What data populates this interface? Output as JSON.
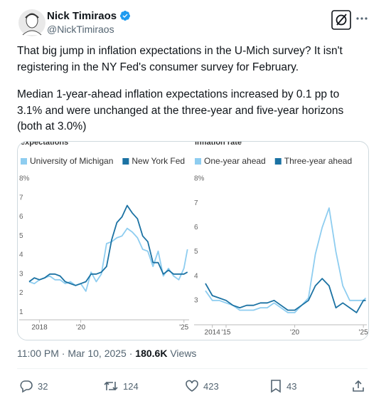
{
  "tweet": {
    "author": {
      "name": "Nick Timiraos",
      "handle": "@NickTimiraos"
    },
    "paragraphs": [
      "That big jump in inflation expectations in the U-Mich survey? It isn't registering in the NY Fed's consumer survey for February.",
      "Median 1-year-ahead inflation expectations increased by 0.1 pp to 3.1% and were unchanged at the three-year and five-year horizons (both at 3.0%)"
    ],
    "time": "11:00 PM",
    "separator": "·",
    "date": "Mar 10, 2025",
    "views": "180.6K",
    "views_label": "Views",
    "actions": {
      "replies": "32",
      "reposts": "124",
      "likes": "423",
      "bookmarks": "43"
    }
  },
  "chart_data": [
    {
      "type": "line",
      "title": "expectations",
      "x": [
        2017.5,
        2017.75,
        2018,
        2018.25,
        2018.5,
        2018.75,
        2019,
        2019.25,
        2019.5,
        2019.75,
        2020,
        2020.25,
        2020.5,
        2020.75,
        2021,
        2021.25,
        2021.5,
        2021.75,
        2022,
        2022.25,
        2022.5,
        2022.75,
        2023,
        2023.25,
        2023.5,
        2023.75,
        2024,
        2024.25,
        2024.5,
        2024.75,
        2025,
        2025.17
      ],
      "xlim": [
        2017.5,
        2025.25
      ],
      "xticks": [
        {
          "value": 2018,
          "label": "2018"
        },
        {
          "value": 2020,
          "label": "'20"
        },
        {
          "value": 2025,
          "label": "'25"
        }
      ],
      "ylim": [
        0.6,
        8
      ],
      "yticks": [
        1,
        2,
        3,
        4,
        5,
        6,
        7,
        {
          "value": 8,
          "label": "8%"
        }
      ],
      "series": [
        {
          "name": "University of Michigan",
          "color": "#8ecdf0",
          "values": [
            2.6,
            2.5,
            2.7,
            2.8,
            2.9,
            2.7,
            2.7,
            2.5,
            2.6,
            2.4,
            2.5,
            2.1,
            3.1,
            2.6,
            3.0,
            4.6,
            4.7,
            4.9,
            5.0,
            5.4,
            5.2,
            4.9,
            4.3,
            4.2,
            3.4,
            4.2,
            2.9,
            3.3,
            2.9,
            2.7,
            3.3,
            4.3
          ]
        },
        {
          "name": "New York Fed",
          "color": "#1b72a3",
          "values": [
            2.6,
            2.8,
            2.7,
            2.8,
            3.0,
            3.0,
            2.9,
            2.6,
            2.5,
            2.4,
            2.5,
            2.6,
            3.0,
            3.0,
            3.1,
            3.4,
            4.8,
            5.7,
            6.0,
            6.6,
            6.2,
            5.9,
            5.0,
            4.7,
            3.6,
            3.6,
            3.0,
            3.2,
            3.0,
            3.0,
            3.0,
            3.1
          ]
        }
      ]
    },
    {
      "type": "line",
      "title": "inflation rate",
      "x": [
        2013.5,
        2014,
        2014.5,
        2015,
        2015.5,
        2016,
        2016.5,
        2017,
        2017.5,
        2018,
        2018.5,
        2019,
        2019.5,
        2020,
        2020.5,
        2021,
        2021.5,
        2022,
        2022.5,
        2023,
        2023.5,
        2024,
        2024.5,
        2025,
        2025.17
      ],
      "xlim": [
        2013.5,
        2025.25
      ],
      "xticks": [
        {
          "value": 2014,
          "label": "2014"
        },
        {
          "value": 2015,
          "label": "'15"
        },
        {
          "value": 2020,
          "label": "'20"
        },
        {
          "value": 2025,
          "label": "'25"
        }
      ],
      "ylim": [
        2,
        8
      ],
      "yticks": [
        3,
        4,
        5,
        6,
        7,
        {
          "value": 8,
          "label": "8%"
        }
      ],
      "series": [
        {
          "name": "One-year ahead",
          "color": "#8ecdf0",
          "values": [
            3.4,
            3.0,
            3.0,
            2.9,
            2.8,
            2.6,
            2.6,
            2.6,
            2.7,
            2.7,
            2.9,
            2.7,
            2.5,
            2.5,
            2.8,
            3.1,
            4.9,
            6.0,
            6.8,
            5.0,
            3.6,
            3.0,
            3.0,
            3.0,
            3.1
          ]
        },
        {
          "name": "Three-year ahead",
          "color": "#1b72a3",
          "values": [
            3.7,
            3.2,
            3.1,
            3.0,
            2.8,
            2.7,
            2.8,
            2.8,
            2.9,
            2.9,
            3.0,
            2.8,
            2.6,
            2.6,
            2.8,
            3.0,
            3.6,
            3.9,
            3.6,
            2.7,
            2.9,
            2.7,
            2.5,
            3.0,
            3.0
          ]
        }
      ]
    }
  ]
}
